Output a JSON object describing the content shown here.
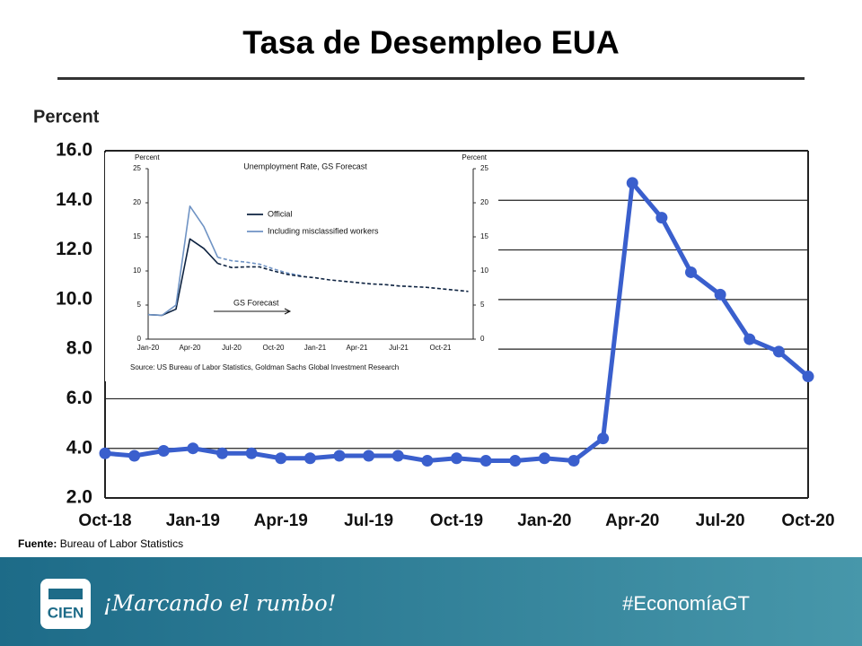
{
  "title": "Tasa de Desempleo EUA",
  "chart_data": [
    {
      "type": "line",
      "ylabel": "Percent",
      "categories": [
        "Oct-18",
        null,
        null,
        "Jan-19",
        null,
        null,
        "Apr-19",
        null,
        null,
        "Jul-19",
        null,
        null,
        "Oct-19",
        null,
        null,
        "Jan-20",
        null,
        null,
        "Apr-20",
        null,
        null,
        "Jul-20",
        null,
        null,
        "Oct-20"
      ],
      "series": [
        {
          "color": "#3a5fcd",
          "values": [
            3.8,
            3.7,
            3.9,
            4.0,
            3.8,
            3.8,
            3.6,
            3.6,
            3.7,
            3.7,
            3.7,
            3.5,
            3.6,
            3.5,
            3.5,
            3.6,
            3.5,
            4.4,
            14.7,
            13.3,
            11.1,
            10.2,
            8.4,
            7.9,
            6.9
          ]
        }
      ],
      "ylim": [
        2,
        16
      ],
      "yticks": [
        {
          "value": 2,
          "label": "2.0"
        },
        {
          "value": 4,
          "label": "4.0"
        },
        {
          "value": 6,
          "label": "6.0"
        },
        {
          "value": 8,
          "label": "8.0"
        },
        {
          "value": 10,
          "label": "10.0"
        },
        {
          "value": 12,
          "label": "12.0"
        },
        {
          "value": 14,
          "label": "14.0"
        },
        {
          "value": 16,
          "label": "16.0"
        }
      ],
      "grid": true,
      "markers": true
    },
    {
      "type": "line",
      "title": "Unemployment Rate, GS Forecast",
      "ylabel": "Percent",
      "y2label": "Percent",
      "categories": [
        "Jan-20",
        null,
        null,
        "Apr-20",
        null,
        null,
        "Jul-20",
        null,
        null,
        "Oct-20",
        null,
        null,
        "Jan-21",
        null,
        null,
        "Apr-21",
        null,
        null,
        "Jul-21",
        null,
        null,
        "Oct-21",
        null,
        null
      ],
      "series": [
        {
          "name": "Official",
          "color": "#0d2240",
          "values": [
            3.6,
            3.5,
            4.4,
            14.7,
            13.3,
            11.1,
            null,
            null,
            null,
            null,
            null,
            null,
            null,
            null,
            null,
            null,
            null,
            null,
            null,
            null,
            null,
            null,
            null,
            null
          ]
        },
        {
          "name": "Including misclassified workers",
          "color": "#6f93c4",
          "values": [
            3.6,
            3.5,
            5.0,
            19.5,
            16.5,
            12.0,
            null,
            null,
            null,
            null,
            null,
            null,
            null,
            null,
            null,
            null,
            null,
            null,
            null,
            null,
            null,
            null,
            null,
            null
          ]
        },
        {
          "color": "#6f93c4",
          "dashed": true,
          "values": [
            null,
            null,
            null,
            null,
            null,
            12.0,
            11.5,
            11.3,
            11.0,
            10.3,
            9.7,
            9.3,
            null,
            null,
            null,
            null,
            null,
            null,
            null,
            null,
            null,
            null,
            null,
            null
          ]
        },
        {
          "color": "#0d2240",
          "dashed": true,
          "values": [
            null,
            null,
            null,
            null,
            null,
            11.1,
            10.5,
            10.6,
            10.6,
            10.0,
            9.5,
            9.2,
            9.0,
            8.7,
            8.5,
            8.3,
            8.1,
            8.0,
            7.8,
            7.7,
            7.6,
            7.4,
            7.2,
            7.0
          ]
        }
      ],
      "ylim": [
        0,
        25
      ],
      "yticks": [
        0,
        5,
        10,
        15,
        20,
        25
      ],
      "y2lim": [
        0,
        25
      ],
      "y2ticks": [
        0,
        5,
        10,
        15,
        20,
        25
      ],
      "annotation": "GS Forecast",
      "source": "Source: US Bureau of Labor Statistics, Goldman Sachs Global Investment Research"
    }
  ],
  "source": {
    "label": "Fuente:",
    "text": "Bureau of Labor Statistics"
  },
  "footer": {
    "logo": "CIEN",
    "slogan": "¡Marcando el rumbo!",
    "hashtag": "#EconomíaGT"
  }
}
